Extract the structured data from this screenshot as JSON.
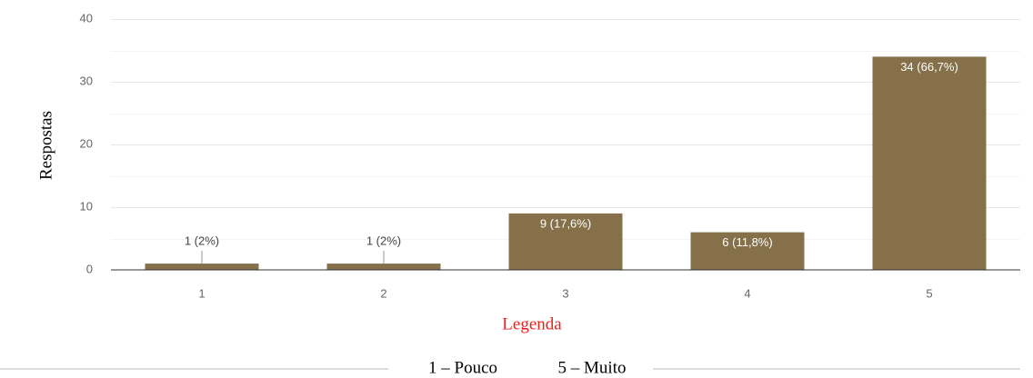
{
  "chart_data": {
    "type": "bar",
    "categories": [
      "1",
      "2",
      "3",
      "4",
      "5"
    ],
    "values": [
      1,
      1,
      9,
      6,
      34
    ],
    "data_labels": [
      "1 (2%)",
      "1 (2%)",
      "9 (17,6%)",
      "6 (11,8%)",
      "34 (66,7%)"
    ],
    "ylabel": "Respostas",
    "ylim": [
      0,
      40
    ],
    "yticks": [
      0,
      10,
      20,
      30,
      40
    ],
    "grid": true,
    "bar_color": "#85704a",
    "legend": {
      "title": "Legenda",
      "items": [
        "1 – Pouco",
        "5 – Muito"
      ]
    }
  }
}
